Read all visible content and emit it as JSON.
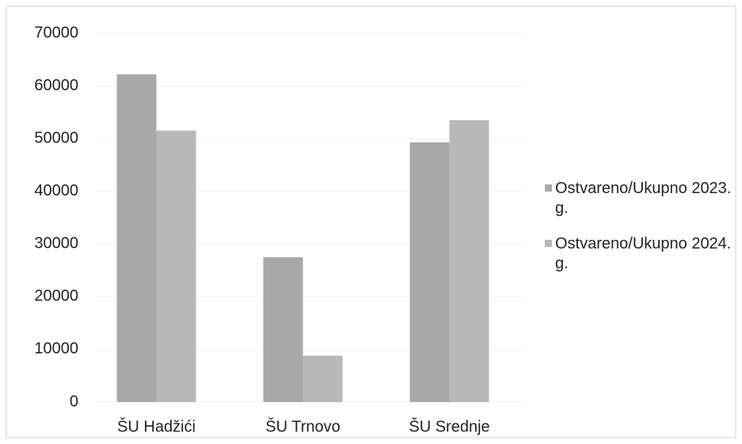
{
  "chart_data": {
    "type": "bar",
    "categories": [
      "ŠU Hadžići",
      "ŠU Trnovo",
      "ŠU Srednje"
    ],
    "series": [
      {
        "name": "Ostvareno/Ukupno 2023. g.",
        "color": "#a8a8a8",
        "values": [
          62200,
          27500,
          49300
        ]
      },
      {
        "name": "Ostvareno/Ukupno 2024. g.",
        "color": "#b8b8b8",
        "values": [
          51500,
          8800,
          53500
        ]
      }
    ],
    "ylim": [
      0,
      70000
    ],
    "yticks": [
      0,
      10000,
      20000,
      30000,
      40000,
      50000,
      60000,
      70000
    ],
    "grid": true,
    "legend": "right"
  }
}
